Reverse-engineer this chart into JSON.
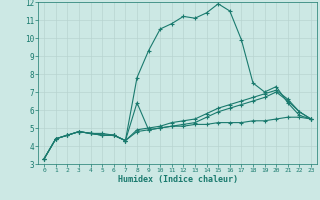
{
  "xlabel": "Humidex (Indice chaleur)",
  "x_values": [
    0,
    1,
    2,
    3,
    4,
    5,
    6,
    7,
    8,
    9,
    10,
    11,
    12,
    13,
    14,
    15,
    16,
    17,
    18,
    19,
    20,
    21,
    22,
    23
  ],
  "line1_y": [
    3.3,
    4.4,
    4.6,
    4.8,
    4.7,
    4.7,
    4.6,
    4.3,
    7.8,
    9.3,
    10.5,
    10.8,
    11.2,
    11.1,
    11.4,
    11.9,
    11.5,
    9.9,
    7.5,
    7.0,
    7.3,
    6.4,
    5.7,
    5.5
  ],
  "line2_y": [
    3.3,
    4.4,
    4.6,
    4.8,
    4.7,
    4.6,
    4.6,
    4.3,
    6.4,
    4.9,
    5.0,
    5.1,
    5.1,
    5.2,
    5.2,
    5.3,
    5.3,
    5.3,
    5.4,
    5.4,
    5.5,
    5.6,
    5.6,
    5.5
  ],
  "line3_y": [
    3.3,
    4.4,
    4.6,
    4.8,
    4.7,
    4.6,
    4.6,
    4.3,
    4.8,
    4.9,
    5.0,
    5.1,
    5.2,
    5.3,
    5.6,
    5.9,
    6.1,
    6.3,
    6.5,
    6.7,
    7.0,
    6.5,
    5.9,
    5.5
  ],
  "line4_y": [
    3.3,
    4.4,
    4.6,
    4.8,
    4.7,
    4.6,
    4.6,
    4.3,
    4.9,
    5.0,
    5.1,
    5.3,
    5.4,
    5.5,
    5.8,
    6.1,
    6.3,
    6.5,
    6.7,
    6.9,
    7.1,
    6.6,
    5.9,
    5.5
  ],
  "line_color": "#1a7a6e",
  "bg_color": "#cce8e4",
  "grid_color": "#b8d4d0",
  "ylim": [
    3,
    12
  ],
  "xlim": [
    -0.5,
    23.5
  ],
  "yticks": [
    3,
    4,
    5,
    6,
    7,
    8,
    9,
    10,
    11,
    12
  ],
  "xticks": [
    0,
    1,
    2,
    3,
    4,
    5,
    6,
    7,
    8,
    9,
    10,
    11,
    12,
    13,
    14,
    15,
    16,
    17,
    18,
    19,
    20,
    21,
    22,
    23
  ]
}
